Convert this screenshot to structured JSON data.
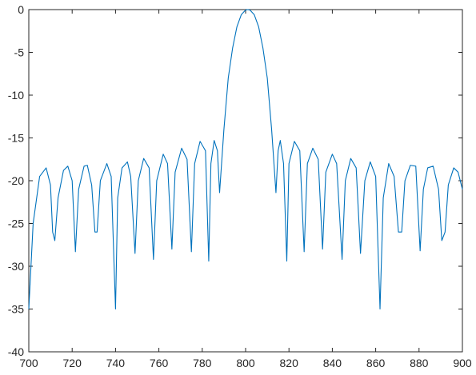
{
  "chart_data": {
    "type": "line",
    "color": "#0072bd",
    "x": [
      700,
      702,
      705,
      708,
      710,
      711,
      712,
      713.5,
      716,
      718,
      720,
      721.5,
      723,
      725.5,
      727,
      729,
      730.5,
      731.5,
      733,
      736,
      738,
      740,
      741,
      743,
      745.5,
      747,
      749,
      750.5,
      753,
      755.5,
      757.5,
      759,
      762,
      764,
      766,
      767.5,
      770.5,
      773,
      775,
      776.5,
      779,
      781.5,
      783,
      784,
      785.5,
      787,
      788,
      790,
      792,
      794,
      796,
      798,
      800,
      801,
      802,
      804,
      806,
      808,
      810,
      812,
      814,
      815,
      816,
      817.5,
      819,
      820,
      822.5,
      825,
      827,
      828.5,
      831,
      833.5,
      835.5,
      837,
      840,
      842,
      844.5,
      846,
      848.5,
      851,
      853,
      855,
      857.5,
      860,
      862,
      863.5,
      866,
      868.5,
      870.5,
      872,
      873.5,
      876,
      878.5,
      880.5,
      882,
      884,
      886.5,
      889,
      890.5,
      892,
      893.5,
      896,
      898,
      900
    ],
    "values": [
      -35,
      -25,
      -19.5,
      -18.5,
      -20.5,
      -26,
      -27,
      -22,
      -18.8,
      -18.3,
      -20,
      -28.3,
      -21,
      -18.3,
      -18.2,
      -20.5,
      -26,
      -26,
      -20,
      -18,
      -19.5,
      -35,
      -22,
      -18.5,
      -17.8,
      -19.5,
      -28.5,
      -20,
      -17.4,
      -18.5,
      -29.2,
      -20,
      -16.9,
      -18,
      -28,
      -19,
      -16.2,
      -17.5,
      -28.3,
      -18,
      -15.4,
      -16.5,
      -29.4,
      -18,
      -15.3,
      -16.5,
      -21.4,
      -14,
      -8,
      -4.5,
      -2,
      -0.6,
      -0.05,
      0,
      -0.05,
      -0.6,
      -2,
      -4.5,
      -8,
      -14,
      -21.4,
      -16.5,
      -15.3,
      -18,
      -29.4,
      -18,
      -15.4,
      -16.5,
      -28.3,
      -18,
      -16.2,
      -17.5,
      -28,
      -19,
      -16.9,
      -18,
      -29.2,
      -20,
      -17.4,
      -18.5,
      -28.5,
      -20,
      -17.8,
      -19.5,
      -35,
      -22,
      -18,
      -19.5,
      -26,
      -26,
      -20,
      -18.2,
      -18.3,
      -28.2,
      -21,
      -18.5,
      -18.3,
      -21,
      -27,
      -26,
      -20.5,
      -18.5,
      -19,
      -21
    ],
    "xlim": [
      700,
      900
    ],
    "ylim": [
      -40,
      0
    ],
    "xticks": [
      700,
      720,
      740,
      760,
      780,
      800,
      820,
      840,
      860,
      880,
      900
    ],
    "yticks": [
      -40,
      -35,
      -30,
      -25,
      -20,
      -15,
      -10,
      -5,
      0
    ]
  }
}
